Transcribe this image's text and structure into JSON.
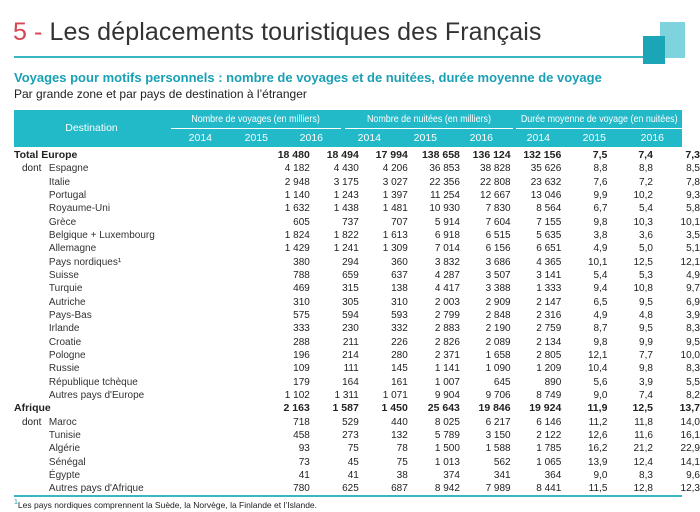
{
  "header": {
    "number": "5 -",
    "title": "Les déplacements touristiques des Français"
  },
  "subtitle": "Voyages pour motifs personnels : nombre de voyages et de nuitées, durée moyenne de voyage",
  "subsubtitle": "Par grande zone et par pays de destination à l’étranger",
  "table": {
    "destination_header": "Destination",
    "groups": [
      "Nombre de voyages (en milliers)",
      "Nombre de nuitées (en milliers)",
      "Durée moyenne de voyage (en nuitées)"
    ],
    "years": [
      "2014",
      "2015",
      "2016",
      "2014",
      "2015",
      "2016",
      "2014",
      "2015",
      "2016"
    ],
    "rows": [
      {
        "prefix": "",
        "label": "Total Europe",
        "bold": true,
        "v": [
          "18 480",
          "18 494",
          "17 994",
          "138 658",
          "136 124",
          "132 156",
          "7,5",
          "7,4",
          "7,3"
        ]
      },
      {
        "prefix": "dont",
        "label": "Espagne",
        "v": [
          "4 182",
          "4 430",
          "4 206",
          "36 853",
          "38 828",
          "35 626",
          "8,8",
          "8,8",
          "8,5"
        ]
      },
      {
        "prefix": "",
        "label": "Italie",
        "v": [
          "2 948",
          "3 175",
          "3 027",
          "22 356",
          "22 808",
          "23 632",
          "7,6",
          "7,2",
          "7,8"
        ]
      },
      {
        "prefix": "",
        "label": "Portugal",
        "v": [
          "1 140",
          "1 243",
          "1 397",
          "11 254",
          "12 667",
          "13 046",
          "9,9",
          "10,2",
          "9,3"
        ]
      },
      {
        "prefix": "",
        "label": "Royaume-Uni",
        "v": [
          "1 632",
          "1 438",
          "1 481",
          "10 930",
          "7 830",
          "8 564",
          "6,7",
          "5,4",
          "5,8"
        ]
      },
      {
        "prefix": "",
        "label": "Grèce",
        "v": [
          "605",
          "737",
          "707",
          "5 914",
          "7 604",
          "7 155",
          "9,8",
          "10,3",
          "10,1"
        ]
      },
      {
        "prefix": "",
        "label": "Belgique + Luxembourg",
        "v": [
          "1 824",
          "1 822",
          "1 613",
          "6 918",
          "6 515",
          "5 635",
          "3,8",
          "3,6",
          "3,5"
        ]
      },
      {
        "prefix": "",
        "label": "Allemagne",
        "v": [
          "1 429",
          "1 241",
          "1 309",
          "7 014",
          "6 156",
          "6 651",
          "4,9",
          "5,0",
          "5,1"
        ]
      },
      {
        "prefix": "",
        "label": "Pays nordiques¹",
        "v": [
          "380",
          "294",
          "360",
          "3 832",
          "3 686",
          "4 365",
          "10,1",
          "12,5",
          "12,1"
        ]
      },
      {
        "prefix": "",
        "label": "Suisse",
        "v": [
          "788",
          "659",
          "637",
          "4 287",
          "3 507",
          "3 141",
          "5,4",
          "5,3",
          "4,9"
        ]
      },
      {
        "prefix": "",
        "label": "Turquie",
        "v": [
          "469",
          "315",
          "138",
          "4 417",
          "3 388",
          "1 333",
          "9,4",
          "10,8",
          "9,7"
        ]
      },
      {
        "prefix": "",
        "label": "Autriche",
        "v": [
          "310",
          "305",
          "310",
          "2 003",
          "2 909",
          "2 147",
          "6,5",
          "9,5",
          "6,9"
        ]
      },
      {
        "prefix": "",
        "label": "Pays-Bas",
        "v": [
          "575",
          "594",
          "593",
          "2 799",
          "2 848",
          "2 316",
          "4,9",
          "4,8",
          "3,9"
        ]
      },
      {
        "prefix": "",
        "label": "Irlande",
        "v": [
          "333",
          "230",
          "332",
          "2 883",
          "2 190",
          "2 759",
          "8,7",
          "9,5",
          "8,3"
        ]
      },
      {
        "prefix": "",
        "label": "Croatie",
        "v": [
          "288",
          "211",
          "226",
          "2 826",
          "2 089",
          "2 134",
          "9,8",
          "9,9",
          "9,5"
        ]
      },
      {
        "prefix": "",
        "label": "Pologne",
        "v": [
          "196",
          "214",
          "280",
          "2 371",
          "1 658",
          "2 805",
          "12,1",
          "7,7",
          "10,0"
        ]
      },
      {
        "prefix": "",
        "label": "Russie",
        "v": [
          "109",
          "111",
          "145",
          "1 141",
          "1 090",
          "1 209",
          "10,4",
          "9,8",
          "8,3"
        ]
      },
      {
        "prefix": "",
        "label": "République tchèque",
        "v": [
          "179",
          "164",
          "161",
          "1 007",
          "645",
          "890",
          "5,6",
          "3,9",
          "5,5"
        ]
      },
      {
        "prefix": "",
        "label": "Autres pays d'Europe",
        "v": [
          "1 102",
          "1 311",
          "1 071",
          "9 904",
          "9 706",
          "8 749",
          "9,0",
          "7,4",
          "8,2"
        ]
      },
      {
        "prefix": "",
        "label": "Afrique",
        "bold": true,
        "v": [
          "2 163",
          "1 587",
          "1 450",
          "25 643",
          "19 846",
          "19 924",
          "11,9",
          "12,5",
          "13,7"
        ]
      },
      {
        "prefix": "dont",
        "label": "Maroc",
        "v": [
          "718",
          "529",
          "440",
          "8 025",
          "6 217",
          "6 146",
          "11,2",
          "11,8",
          "14,0"
        ]
      },
      {
        "prefix": "",
        "label": "Tunisie",
        "v": [
          "458",
          "273",
          "132",
          "5 789",
          "3 150",
          "2 122",
          "12,6",
          "11,6",
          "16,1"
        ]
      },
      {
        "prefix": "",
        "label": "Algérie",
        "v": [
          "93",
          "75",
          "78",
          "1 500",
          "1 588",
          "1 785",
          "16,2",
          "21,2",
          "22,9"
        ]
      },
      {
        "prefix": "",
        "label": "Sénégal",
        "v": [
          "73",
          "45",
          "75",
          "1 013",
          "562",
          "1 065",
          "13,9",
          "12,4",
          "14,1"
        ]
      },
      {
        "prefix": "",
        "label": "Égypte",
        "v": [
          "41",
          "41",
          "38",
          "374",
          "341",
          "364",
          "9,0",
          "8,3",
          "9,6"
        ]
      },
      {
        "prefix": "",
        "label": "Autres pays d'Afrique",
        "v": [
          "780",
          "625",
          "687",
          "8 942",
          "7 989",
          "8 441",
          "11,5",
          "12,8",
          "12,3"
        ]
      }
    ]
  },
  "footnote": {
    "mark": "1",
    "text": "Les pays nordiques comprennent la Suède, la Norvège, la Finlande et l’Islande."
  },
  "colors": {
    "accent": "#22b9c9",
    "title_number": "#d94452",
    "subtitle": "#1aa0b5"
  }
}
